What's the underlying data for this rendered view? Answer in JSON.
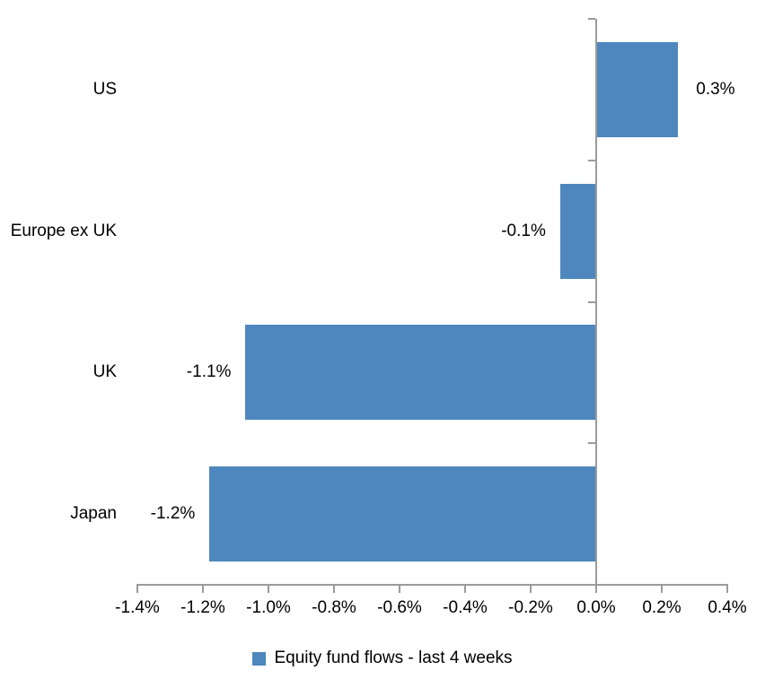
{
  "chart_data": {
    "type": "bar",
    "orientation": "horizontal",
    "title": "",
    "xlabel": "",
    "ylabel": "",
    "categories": [
      "US",
      "Europe ex UK",
      "UK",
      "Japan"
    ],
    "values": [
      0.3,
      -0.1,
      -1.1,
      -1.2
    ],
    "values_as_drawn": [
      0.25,
      -0.11,
      -1.07,
      -1.18
    ],
    "data_labels": [
      "0.3%",
      "-0.1%",
      "-1.1%",
      "-1.2%"
    ],
    "series": [
      {
        "name": "Equity fund flows - last 4 weeks",
        "values": [
          0.3,
          -0.1,
          -1.1,
          -1.2
        ]
      }
    ],
    "xlim": [
      -1.4,
      0.4
    ],
    "x_tick_values": [
      -1.4,
      -1.2,
      -1.0,
      -0.8,
      -0.6,
      -0.4,
      -0.2,
      0.0,
      0.2,
      0.4
    ],
    "x_tick_labels": [
      "-1.4%",
      "-1.2%",
      "-1.0%",
      "-0.8%",
      "-0.6%",
      "-0.4%",
      "-0.2%",
      "0.0%",
      "0.2%",
      "0.4%"
    ],
    "grid": false,
    "legend_position": "bottom",
    "colors": {
      "bar": "#4D87BE",
      "axis": "#9B9B9B",
      "text": "#000000",
      "background": "#FFFFFF"
    }
  },
  "legend": {
    "label": "Equity fund flows - last 4 weeks"
  }
}
